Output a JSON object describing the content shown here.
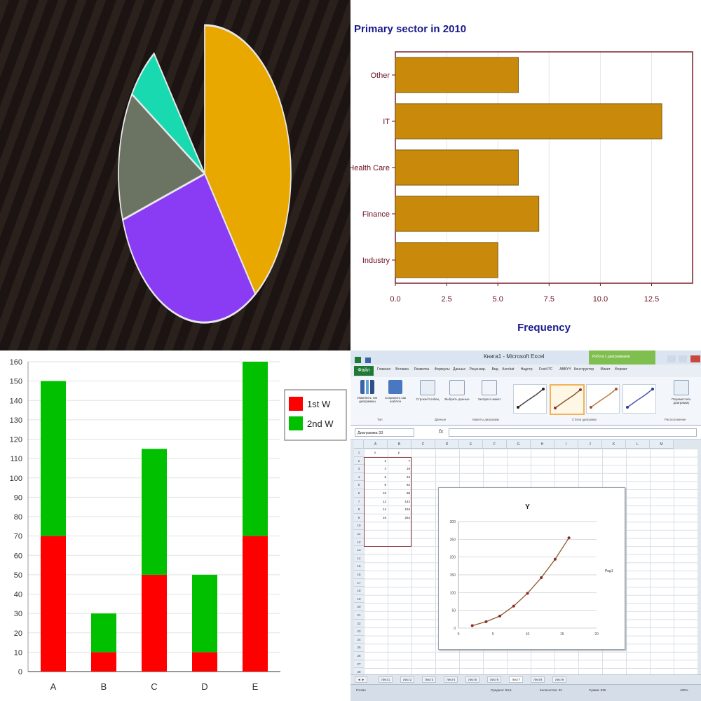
{
  "chart_data": [
    {
      "type": "pie",
      "values": [
        40,
        30,
        14,
        6
      ],
      "slice_colors": [
        "#e8a800",
        "#8a3cf5",
        "#6b7463",
        "#19d9b0"
      ],
      "background": "#1b1412",
      "exploded_gap": "top-left"
    },
    {
      "type": "bar",
      "orientation": "horizontal",
      "title": "Primary sector in 2010",
      "xlabel": "Frequency",
      "ylabel": "",
      "categories": [
        "Other",
        "IT",
        "Health Care",
        "Finance",
        "Industry"
      ],
      "values": [
        6,
        13,
        6,
        7,
        5
      ],
      "xlim": [
        0,
        14.5
      ],
      "xticks": [
        "0.0",
        "2.5",
        "5.0",
        "7.5",
        "10.0",
        "12.5"
      ],
      "xtick_values": [
        0,
        2.5,
        5,
        7.5,
        10,
        12.5
      ],
      "bar_color": "#c98a0c",
      "grid": true
    },
    {
      "type": "bar",
      "stacked": true,
      "categories": [
        "A",
        "B",
        "C",
        "D",
        "E"
      ],
      "series": [
        {
          "name": "1st W",
          "values": [
            70,
            10,
            50,
            10,
            70
          ],
          "color": "#ff0000"
        },
        {
          "name": "2nd W",
          "values": [
            80,
            20,
            65,
            40,
            90
          ],
          "color": "#00c000"
        }
      ],
      "ylim": [
        0,
        160
      ],
      "yticks": [
        "0",
        "10",
        "20",
        "30",
        "40",
        "50",
        "60",
        "70",
        "80",
        "90",
        "100",
        "110",
        "120",
        "130",
        "140",
        "150",
        "160"
      ],
      "legend": "right",
      "grid": true
    },
    {
      "type": "scatter",
      "title": "Y",
      "x": [
        2,
        4,
        6,
        8,
        10,
        12,
        14,
        16
      ],
      "y": [
        7,
        18,
        34,
        62,
        98,
        142,
        194,
        254
      ],
      "xlim": [
        0,
        20
      ],
      "ylim": [
        0,
        300
      ],
      "xticks": [
        "0",
        "5",
        "10",
        "15",
        "20"
      ],
      "xtick_values": [
        0,
        5,
        10,
        15,
        20
      ],
      "yticks": [
        "0",
        "50",
        "100",
        "150",
        "200",
        "250",
        "300"
      ],
      "ytick_values": [
        0,
        50,
        100,
        150,
        200,
        250,
        300
      ],
      "legend_label": "Ряд1",
      "trendline": true,
      "grid": true
    }
  ],
  "excel": {
    "window_title": "Книга1 - Microsoft Excel",
    "context_tab": "Работа с диаграммами",
    "file_tab": "Файл",
    "tabs": [
      "Главная",
      "Вставка",
      "Разметка",
      "Формулы",
      "Данные",
      "Рецензир.",
      "Вид",
      "Acrobat",
      "Надстр.",
      "Foxit PC",
      "ABBYY",
      "Конструктор",
      "Макет",
      "Формат"
    ],
    "ribbon": {
      "btn_change_type": "Изменить тип диаграммы",
      "btn_save_template": "Сохранить как шаблон",
      "btn_switch": "Строка/столбец",
      "btn_select_data": "Выбрать данные",
      "btn_layout": "Экспресс-макет",
      "btn_move": "Переместить диаграмму",
      "group_type": "Тип",
      "group_data": "Данные",
      "group_layouts": "Макеты диаграмм",
      "group_styles": "Стили диаграмм",
      "group_location": "Расположение"
    },
    "name_box": "Диаграмма 33",
    "fx": "fx",
    "columns": [
      "A",
      "B",
      "C",
      "D",
      "E",
      "F",
      "G",
      "H",
      "I",
      "J",
      "K",
      "L",
      "M"
    ],
    "rows": [
      "1",
      "2",
      "3",
      "4",
      "5",
      "6",
      "7",
      "8",
      "9",
      "10",
      "11",
      "12",
      "13",
      "14",
      "15",
      "16",
      "17",
      "18",
      "19",
      "20",
      "21",
      "22",
      "23",
      "24",
      "25",
      "26",
      "27",
      "28"
    ],
    "table_header": [
      "x",
      "y"
    ],
    "table_rows": [
      [
        "2",
        "7"
      ],
      [
        "4",
        "18"
      ],
      [
        "6",
        "34"
      ],
      [
        "8",
        "62"
      ],
      [
        "10",
        "98"
      ],
      [
        "12",
        "142"
      ],
      [
        "14",
        "194"
      ],
      [
        "16",
        "254"
      ]
    ],
    "sheets": [
      "Лист1",
      "Лист2",
      "Лист3",
      "Лист4",
      "Лист5",
      "Лист6",
      "Лист7",
      "Лист8",
      "Лист9"
    ],
    "active_sheet": "Лист7",
    "status": {
      "ready": "Готово",
      "average": "Среднее: 58,5",
      "count": "Количество: 32",
      "sum": "Сумма: 936",
      "zoom": "100%"
    }
  }
}
